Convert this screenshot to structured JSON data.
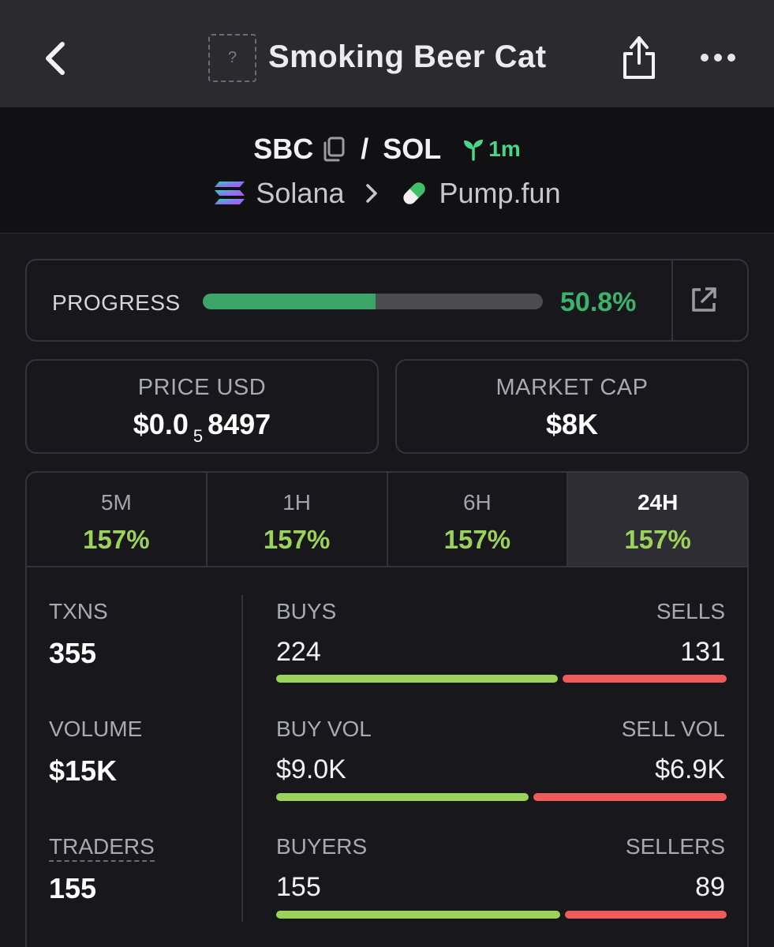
{
  "topbar": {
    "token_placeholder": "?",
    "token_name": "Smoking Beer Cat"
  },
  "pair": {
    "base": "SBC",
    "separator": "/",
    "quote": "SOL",
    "age": "1m",
    "chain": "Solana",
    "dex": "Pump.fun"
  },
  "progress": {
    "label": "PROGRESS",
    "value_text": "50.8%",
    "percent": 50.8
  },
  "price": {
    "label": "PRICE USD",
    "prefix": "$0.0",
    "zeros": "5",
    "digits": "8497"
  },
  "market_cap": {
    "label": "MARKET CAP",
    "value": "$8K"
  },
  "periods": [
    {
      "label": "5M",
      "change": "157%"
    },
    {
      "label": "1H",
      "change": "157%"
    },
    {
      "label": "6H",
      "change": "157%"
    },
    {
      "label": "24H",
      "change": "157%",
      "active": true
    }
  ],
  "metrics": {
    "txns": {
      "label": "TXNS",
      "value": "355"
    },
    "volume": {
      "label": "VOLUME",
      "value": "$15K"
    },
    "traders": {
      "label": "TRADERS",
      "value": "155"
    }
  },
  "splits": {
    "txns": {
      "left_label": "BUYS",
      "right_label": "SELLS",
      "left_value": "224",
      "right_value": "131",
      "left_share": 0.631
    },
    "volume": {
      "left_label": "BUY VOL",
      "right_label": "SELL VOL",
      "left_value": "$9.0K",
      "right_value": "$6.9K",
      "left_share": 0.566
    },
    "traders": {
      "left_label": "BUYERS",
      "right_label": "SELLERS",
      "left_value": "155",
      "right_value": "89",
      "left_share": 0.635
    }
  },
  "colors": {
    "green": "#3bb36b",
    "lime": "#9bd35a",
    "red": "#ef5b5b",
    "background": "#18181c"
  },
  "icons": [
    "back-chevron-icon",
    "share-icon",
    "more-dots-icon",
    "copy-icon",
    "seedling-icon",
    "solana-icon",
    "pill-icon",
    "external-link-icon"
  ]
}
